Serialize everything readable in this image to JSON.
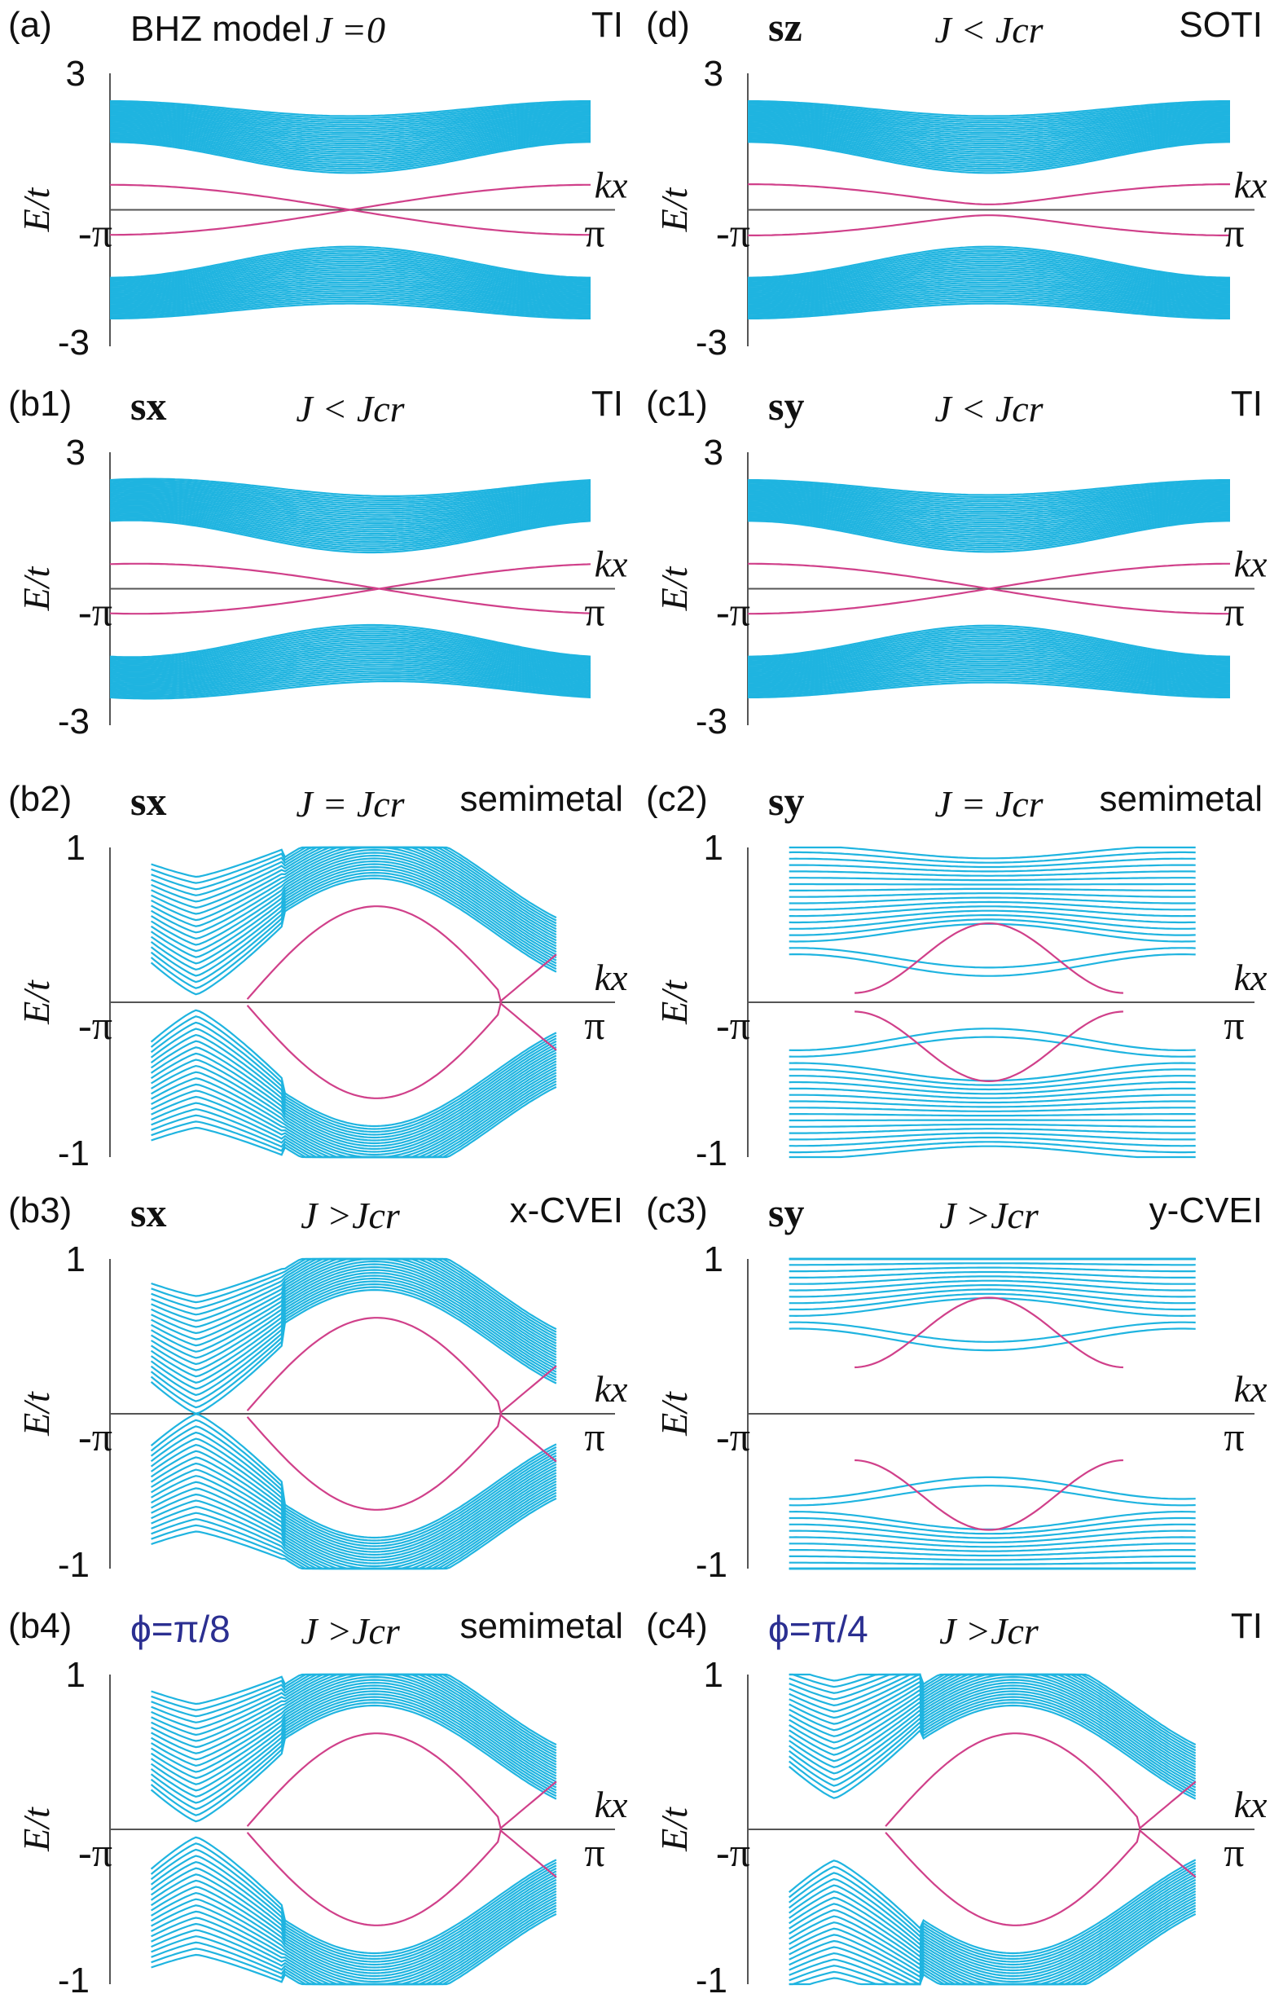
{
  "colors": {
    "bulk": "#1fb4e0",
    "edge": "#d0408a",
    "axis": "#555555",
    "phi_text": "#2b2f91"
  },
  "chart_data": [
    {
      "id": "a",
      "type": "line",
      "panel_label": "(a)",
      "spin_label": "BHZ model",
      "coupling_label": "J =0",
      "phase_label": "TI",
      "ylim": [
        -3,
        3
      ],
      "y_ticks": [
        "3",
        "-3"
      ],
      "x_ticks": [
        "-π",
        "π"
      ],
      "xlabel": "kx",
      "ylabel": "E/t",
      "shape": "ti",
      "dirac_x": 0.5,
      "gap": 0.0
    },
    {
      "id": "d",
      "type": "line",
      "panel_label": "(d)",
      "spin_label": "sz",
      "coupling_label": "J < Jcr",
      "phase_label": "SOTI",
      "ylim": [
        -3,
        3
      ],
      "y_ticks": [
        "3",
        "-3"
      ],
      "x_ticks": [
        "-π",
        "π"
      ],
      "xlabel": "kx",
      "ylabel": "E/t",
      "shape": "ti",
      "dirac_x": 0.5,
      "gap": 0.12
    },
    {
      "id": "b1",
      "type": "line",
      "panel_label": "(b1)",
      "spin_label": "sx",
      "coupling_label": "J < Jcr",
      "phase_label": "TI",
      "ylim": [
        -3,
        3
      ],
      "y_ticks": [
        "3",
        "-3"
      ],
      "x_ticks": [
        "-π",
        "π"
      ],
      "xlabel": "kx",
      "ylabel": "E/t",
      "shape": "ti",
      "dirac_x": 0.56,
      "gap": 0.0
    },
    {
      "id": "c1",
      "type": "line",
      "panel_label": "(c1)",
      "spin_label": "sy",
      "coupling_label": "J < Jcr",
      "phase_label": "TI",
      "ylim": [
        -3,
        3
      ],
      "y_ticks": [
        "3",
        "-3"
      ],
      "x_ticks": [
        "-π",
        "π"
      ],
      "xlabel": "kx",
      "ylabel": "E/t",
      "shape": "ti",
      "dirac_x": 0.5,
      "gap": 0.0
    },
    {
      "id": "b2",
      "type": "line",
      "panel_label": "(b2)",
      "spin_label": "sx",
      "coupling_label": "J = Jcr",
      "phase_label": "semimetal",
      "ylim": [
        -1,
        1
      ],
      "y_ticks": [
        "1",
        "-1"
      ],
      "x_ticks": [
        "-π",
        "π"
      ],
      "xlabel": "kx",
      "ylabel": "E/t",
      "shape": "sx",
      "left_gap": 0.05,
      "dirac_x": 0.81
    },
    {
      "id": "c2",
      "type": "line",
      "panel_label": "(c2)",
      "spin_label": "sy",
      "coupling_label": "J = Jcr",
      "phase_label": "semimetal",
      "ylim": [
        -1,
        1
      ],
      "y_ticks": [
        "1",
        "-1"
      ],
      "x_ticks": [
        "-π",
        "π"
      ],
      "xlabel": "kx",
      "ylabel": "E/t",
      "shape": "sy",
      "gap": 0.06
    },
    {
      "id": "b3",
      "type": "line",
      "panel_label": "(b3)",
      "spin_label": "sx",
      "coupling_label": "J >Jcr",
      "phase_label": "x-CVEI",
      "ylim": [
        -1,
        1
      ],
      "y_ticks": [
        "1",
        "-1"
      ],
      "x_ticks": [
        "-π",
        "π"
      ],
      "xlabel": "kx",
      "ylabel": "E/t",
      "shape": "sx",
      "left_gap": 0.0,
      "dirac_x": 0.81
    },
    {
      "id": "c3",
      "type": "line",
      "panel_label": "(c3)",
      "spin_label": "sy",
      "coupling_label": "J >Jcr",
      "phase_label": "y-CVEI",
      "ylim": [
        -1,
        1
      ],
      "y_ticks": [
        "1",
        "-1"
      ],
      "x_ticks": [
        "-π",
        "π"
      ],
      "xlabel": "kx",
      "ylabel": "E/t",
      "shape": "sy",
      "gap": 0.3
    },
    {
      "id": "b4",
      "type": "line",
      "panel_label": "(b4)",
      "spin_label": "ϕ=π/8",
      "coupling_label": "J >Jcr",
      "phase_label": "semimetal",
      "ylim": [
        -1,
        1
      ],
      "y_ticks": [
        "1",
        "-1"
      ],
      "x_ticks": [
        "-π",
        "π"
      ],
      "xlabel": "kx",
      "ylabel": "E/t",
      "shape": "sx",
      "left_gap": 0.05,
      "dirac_x": 0.81
    },
    {
      "id": "c4",
      "type": "line",
      "panel_label": "(c4)",
      "spin_label": "ϕ=π/4",
      "coupling_label": "J >Jcr",
      "phase_label": "TI",
      "ylim": [
        -1,
        1
      ],
      "y_ticks": [
        "1",
        "-1"
      ],
      "x_ticks": [
        "-π",
        "π"
      ],
      "xlabel": "kx",
      "ylabel": "E/t",
      "shape": "sx",
      "left_gap": 0.2,
      "dirac_x": 0.81
    }
  ]
}
